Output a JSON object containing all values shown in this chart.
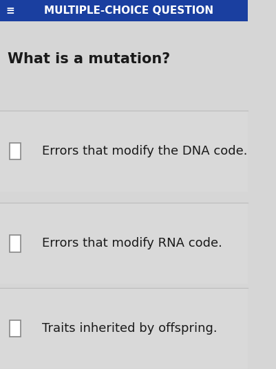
{
  "header_text": "MULTIPLE-CHOICE QUESTION",
  "header_bg_color": "#1a3fa0",
  "header_text_color": "#ffffff",
  "header_icon_color": "#ffffff",
  "background_color": "#d6d6d6",
  "question": "What is a mutation?",
  "question_fontsize": 15,
  "question_color": "#1a1a1a",
  "options": [
    "Errors that modify the DNA code.",
    "Errors that modify RNA code.",
    "Traits inherited by offspring."
  ],
  "option_fontsize": 13,
  "option_text_color": "#1a1a1a",
  "checkbox_color": "#ffffff",
  "checkbox_edge_color": "#888888",
  "divider_color": "#bbbbbb",
  "option_bg_color": "#d9d9d9",
  "figwidth": 4.01,
  "figheight": 5.37
}
